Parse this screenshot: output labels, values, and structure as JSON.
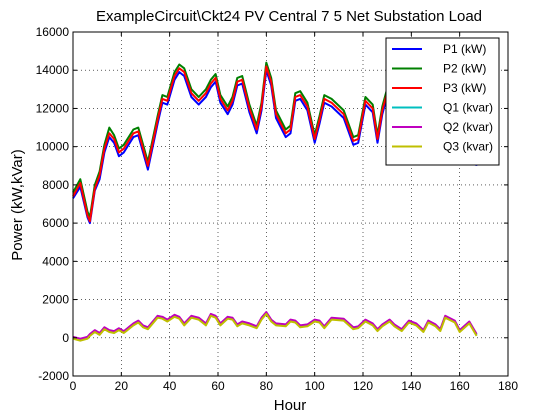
{
  "chart_data": {
    "type": "line",
    "title": "ExampleCircuit\\Ckt24 PV Central 7 5 Net Substation Load",
    "xlabel": "Hour",
    "ylabel": "Power (kW,kVar)",
    "xlim": [
      0,
      180
    ],
    "ylim": [
      -2000,
      16000
    ],
    "xticks": [
      0,
      20,
      40,
      60,
      80,
      100,
      120,
      140,
      160,
      180
    ],
    "yticks": [
      -2000,
      0,
      2000,
      4000,
      6000,
      8000,
      10000,
      12000,
      14000,
      16000
    ],
    "grid": true,
    "legend_position": "top-right",
    "x": [
      0,
      3,
      6,
      7,
      9,
      11,
      13,
      15,
      17,
      19,
      21,
      25,
      27,
      29,
      31,
      35,
      37,
      39,
      42,
      44,
      46,
      49,
      52,
      55,
      57,
      59,
      61,
      64,
      66,
      68,
      70,
      73,
      76,
      78,
      80,
      82,
      84,
      88,
      90,
      92,
      94,
      97,
      100,
      102,
      104,
      107,
      112,
      116,
      118,
      121,
      124,
      126,
      128,
      131,
      133,
      136,
      139,
      142,
      145,
      147,
      150,
      152,
      154,
      158,
      160,
      164,
      167
    ],
    "series": [
      {
        "name": "P1 (kW)",
        "color": "#0000ff",
        "values": [
          7300,
          7900,
          6300,
          6000,
          7700,
          8300,
          9700,
          10500,
          10200,
          9500,
          9700,
          10500,
          10600,
          9700,
          8800,
          11200,
          12300,
          12200,
          13500,
          13900,
          13700,
          12600,
          12200,
          12600,
          13100,
          13400,
          12300,
          11700,
          12200,
          13200,
          13300,
          11800,
          10700,
          11900,
          14000,
          13200,
          11500,
          10500,
          10700,
          12400,
          12500,
          11900,
          10200,
          11200,
          12300,
          12100,
          11500,
          10100,
          10200,
          12200,
          11800,
          10200,
          11700,
          13100,
          12300,
          11200,
          9800,
          10600,
          11500,
          10300,
          9600,
          10500,
          11100,
          10100,
          9200,
          10800,
          9000
        ]
      },
      {
        "name": "P2 (kW)",
        "color": "#008000",
        "values": [
          7600,
          8300,
          6600,
          6300,
          8000,
          8700,
          10100,
          11000,
          10600,
          9900,
          10100,
          10900,
          11000,
          10100,
          9200,
          11600,
          12700,
          12600,
          13900,
          14300,
          14100,
          13000,
          12600,
          13000,
          13500,
          13800,
          12700,
          12100,
          12600,
          13600,
          13700,
          12200,
          11100,
          12300,
          14400,
          13600,
          11900,
          10900,
          11100,
          12800,
          12900,
          12300,
          10600,
          11600,
          12700,
          12500,
          11900,
          10500,
          10600,
          12600,
          12200,
          10600,
          12100,
          13500,
          12700,
          11600,
          10200,
          11000,
          11900,
          10700,
          10000,
          10900,
          11500,
          10500,
          9600,
          11200,
          9400
        ]
      },
      {
        "name": "P3 (kW)",
        "color": "#ff0000",
        "values": [
          7400,
          8100,
          6400,
          6100,
          7800,
          8500,
          9900,
          10700,
          10400,
          9700,
          9900,
          10700,
          10800,
          9900,
          9000,
          11400,
          12500,
          12400,
          13700,
          14100,
          13900,
          12800,
          12400,
          12800,
          13300,
          13600,
          12500,
          11900,
          12400,
          13400,
          13500,
          12000,
          10900,
          12100,
          14200,
          13400,
          11700,
          10700,
          10900,
          12600,
          12700,
          12100,
          10400,
          11400,
          12500,
          12300,
          11700,
          10300,
          10400,
          12400,
          12000,
          10400,
          11900,
          13300,
          12500,
          11400,
          10000,
          10800,
          11700,
          10500,
          9800,
          10700,
          11300,
          10300,
          9400,
          11000,
          9200
        ]
      },
      {
        "name": "Q1 (kvar)",
        "color": "#00bfbf",
        "values": [
          0,
          -100,
          0,
          150,
          350,
          200,
          500,
          350,
          300,
          450,
          300,
          700,
          850,
          600,
          500,
          1100,
          1050,
          900,
          1150,
          1050,
          700,
          1100,
          1000,
          700,
          1200,
          1100,
          700,
          1050,
          1000,
          650,
          800,
          700,
          550,
          1000,
          1300,
          900,
          700,
          650,
          900,
          850,
          600,
          650,
          900,
          850,
          550,
          1000,
          950,
          500,
          550,
          900,
          700,
          400,
          650,
          900,
          650,
          400,
          850,
          700,
          350,
          850,
          650,
          400,
          1100,
          850,
          350,
          800,
          150
        ]
      },
      {
        "name": "Q2 (kvar)",
        "color": "#bf00bf",
        "values": [
          50,
          -50,
          50,
          200,
          400,
          250,
          550,
          400,
          350,
          500,
          350,
          750,
          900,
          650,
          550,
          1150,
          1100,
          950,
          1200,
          1100,
          750,
          1150,
          1050,
          750,
          1250,
          1150,
          750,
          1100,
          1050,
          700,
          850,
          750,
          600,
          1050,
          1350,
          950,
          750,
          700,
          950,
          900,
          650,
          700,
          950,
          900,
          600,
          1050,
          1000,
          550,
          600,
          950,
          750,
          450,
          700,
          950,
          700,
          450,
          900,
          750,
          400,
          900,
          700,
          450,
          1150,
          900,
          400,
          850,
          200
        ]
      },
      {
        "name": "Q3 (kvar)",
        "color": "#bfbf00",
        "values": [
          -50,
          -150,
          -50,
          100,
          300,
          150,
          450,
          300,
          250,
          400,
          250,
          650,
          800,
          550,
          450,
          1050,
          1000,
          850,
          1100,
          1000,
          650,
          1050,
          950,
          650,
          1150,
          1050,
          650,
          1000,
          950,
          600,
          750,
          650,
          500,
          950,
          1250,
          850,
          650,
          600,
          850,
          800,
          550,
          600,
          850,
          800,
          500,
          950,
          900,
          450,
          500,
          850,
          650,
          350,
          600,
          850,
          600,
          350,
          800,
          650,
          300,
          800,
          600,
          350,
          1050,
          800,
          300,
          750,
          100
        ]
      }
    ]
  }
}
